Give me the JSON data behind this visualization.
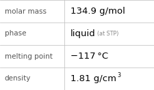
{
  "rows": [
    {
      "label": "molar mass",
      "value": "134.9 g/mol",
      "value2": null,
      "sup": null
    },
    {
      "label": "phase",
      "value": "liquid",
      "value2": "(at STP)",
      "sup": null
    },
    {
      "label": "melting point",
      "value": "−117 °C",
      "value2": null,
      "sup": null
    },
    {
      "label": "density",
      "value": "1.81 g/cm",
      "value2": "3",
      "sup": true
    }
  ],
  "bg_color": "#ffffff",
  "line_color": "#bbbbbb",
  "label_color": "#555555",
  "value_color": "#000000",
  "small_color": "#888888",
  "label_fontsize": 7.5,
  "value_fontsize": 9.5,
  "small_fontsize": 5.8,
  "sup_fontsize": 5.8,
  "col_split": 0.415
}
